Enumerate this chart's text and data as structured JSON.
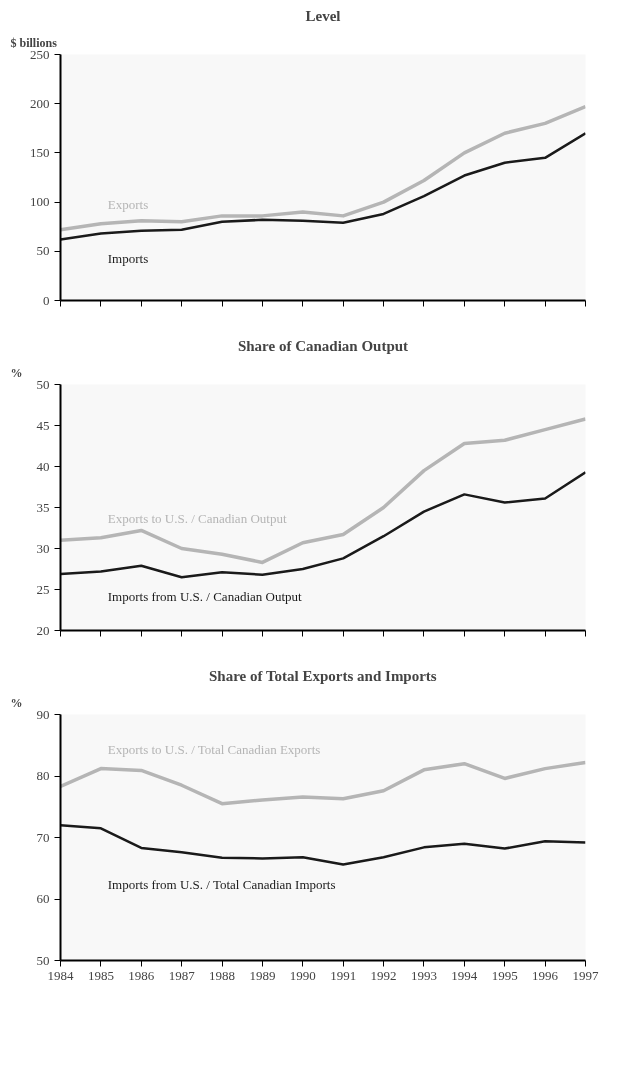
{
  "chart_data": [
    {
      "type": "line",
      "title": "Level",
      "ylabel": "$ billions",
      "x": [
        1984,
        1985,
        1986,
        1987,
        1988,
        1989,
        1990,
        1991,
        1992,
        1993,
        1994,
        1995,
        1996,
        1997
      ],
      "xlim": [
        1984,
        1997
      ],
      "xticks": [
        1984,
        1985,
        1986,
        1987,
        1988,
        1989,
        1990,
        1991,
        1992,
        1993,
        1994,
        1995,
        1996,
        1997
      ],
      "ylim": [
        0,
        250
      ],
      "yticks": [
        0,
        50,
        100,
        150,
        200,
        250
      ],
      "tick_labels": "y",
      "grid": false,
      "legend": false,
      "series": [
        {
          "name": "Exports",
          "color": "#b5b5b5",
          "values": [
            72,
            78,
            81,
            80,
            86,
            86,
            90,
            86,
            100,
            122,
            150,
            170,
            180,
            197
          ]
        },
        {
          "name": "Imports",
          "color": "#1a1a1a",
          "values": [
            62,
            68,
            71,
            72,
            80,
            82,
            81,
            79,
            88,
            106,
            127,
            140,
            145,
            170
          ]
        }
      ]
    },
    {
      "type": "line",
      "title": "Share of Canadian Output",
      "ylabel": "%",
      "x": [
        1984,
        1985,
        1986,
        1987,
        1988,
        1989,
        1990,
        1991,
        1992,
        1993,
        1994,
        1995,
        1996,
        1997
      ],
      "xlim": [
        1984,
        1997
      ],
      "xticks": [
        1984,
        1985,
        1986,
        1987,
        1988,
        1989,
        1990,
        1991,
        1992,
        1993,
        1994,
        1995,
        1996,
        1997
      ],
      "ylim": [
        20,
        50
      ],
      "yticks": [
        20,
        25,
        30,
        35,
        40,
        45,
        50
      ],
      "tick_labels": "y",
      "grid": false,
      "legend": false,
      "series": [
        {
          "name": "Exports to U.S. / Canadian Output",
          "color": "#b5b5b5",
          "values": [
            31,
            31.3,
            32.2,
            30,
            29.3,
            28.3,
            30.7,
            31.7,
            35,
            39.5,
            42.8,
            43.2,
            44.5,
            45.8
          ]
        },
        {
          "name": "Imports from U.S. / Canadian Output",
          "color": "#1a1a1a",
          "values": [
            26.9,
            27.2,
            27.9,
            26.5,
            27.1,
            26.8,
            27.5,
            28.8,
            31.5,
            34.5,
            36.6,
            35.6,
            36.1,
            39.3
          ]
        }
      ]
    },
    {
      "type": "line",
      "title": "Share of Total Exports and Imports",
      "ylabel": "%",
      "x": [
        1984,
        1985,
        1986,
        1987,
        1988,
        1989,
        1990,
        1991,
        1992,
        1993,
        1994,
        1995,
        1996,
        1997
      ],
      "xlim": [
        1984,
        1997
      ],
      "xticks": [
        1984,
        1985,
        1986,
        1987,
        1988,
        1989,
        1990,
        1991,
        1992,
        1993,
        1994,
        1995,
        1996,
        1997
      ],
      "ylim": [
        50,
        90
      ],
      "yticks": [
        50,
        60,
        70,
        80,
        90
      ],
      "grid": false,
      "legend": false,
      "series": [
        {
          "name": "Exports to U.S.  / Total Canadian Exports",
          "color": "#b5b5b5",
          "values": [
            78.3,
            81.2,
            80.9,
            78.5,
            75.5,
            76.1,
            76.6,
            76.3,
            77.6,
            81,
            82,
            79.6,
            81.2,
            82.2
          ]
        },
        {
          "name": "Imports from U.S.  / Total Canadian Imports",
          "color": "#1a1a1a",
          "values": [
            72,
            71.5,
            68.3,
            67.6,
            66.7,
            66.6,
            66.8,
            65.6,
            66.8,
            68.4,
            69,
            68.2,
            69.4,
            69.2
          ]
        }
      ]
    }
  ]
}
